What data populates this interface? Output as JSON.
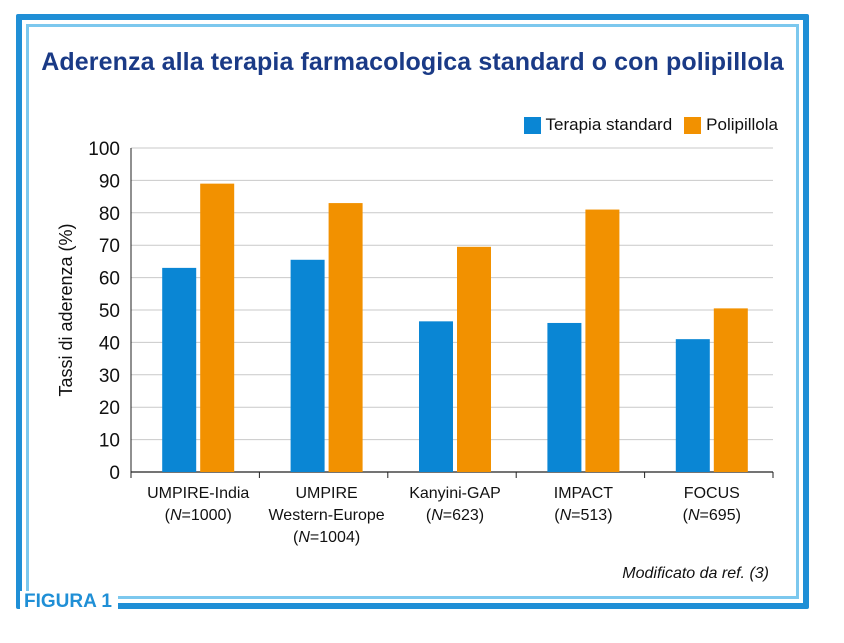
{
  "figure_label": "FIGURA 1",
  "source_note": "Modificato da ref. (3)",
  "colors": {
    "accent": "#1f8fd6",
    "title": "#1a3a86"
  },
  "chart_data": {
    "type": "bar",
    "title": "Aderenza alla terapia farmacologica standard o con polipillola",
    "ylabel": "Tassi di aderenza (%)",
    "xlabel": "",
    "ylim": [
      0,
      100
    ],
    "yticks": [
      0,
      10,
      20,
      30,
      40,
      50,
      60,
      70,
      80,
      90,
      100
    ],
    "grid": "horizontal",
    "legend_position": "top-right",
    "categories": [
      [
        "UMPIRE-India",
        "(N=1000)"
      ],
      [
        "UMPIRE",
        "Western-Europe",
        "(N=1004)"
      ],
      [
        "Kanyini-GAP",
        "(N=623)"
      ],
      [
        "IMPACT",
        "(N=513)"
      ],
      [
        "FOCUS",
        "(N=695)"
      ]
    ],
    "series": [
      {
        "name": "Terapia standard",
        "color": "#0a86d4",
        "values": [
          63,
          65.5,
          46.5,
          46,
          41
        ]
      },
      {
        "name": "Polipillola",
        "color": "#f29100",
        "values": [
          89,
          83,
          69.5,
          81,
          50.5
        ]
      }
    ]
  }
}
